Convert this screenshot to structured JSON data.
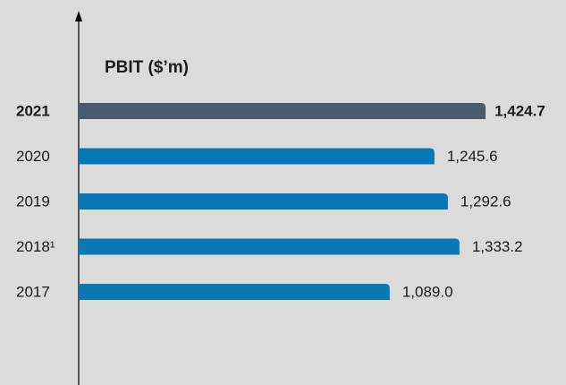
{
  "chart_data": {
    "type": "hbar",
    "title": "PBIT ($’m)",
    "categories": [
      "2021",
      "2020",
      "2019",
      "2018¹",
      "2017"
    ],
    "values": [
      1424.7,
      1245.6,
      1292.6,
      1333.2,
      1089.0
    ],
    "value_labels": [
      "1,424.7",
      "1,245.6",
      "1,292.6",
      "1,333.2",
      "1,089.0"
    ],
    "colors": [
      "#4a5b6b",
      "#0a77b5",
      "#0a77b5",
      "#0a77b5",
      "#0a77b5"
    ],
    "highlight": "2021",
    "xlim": [
      0,
      1700
    ]
  }
}
